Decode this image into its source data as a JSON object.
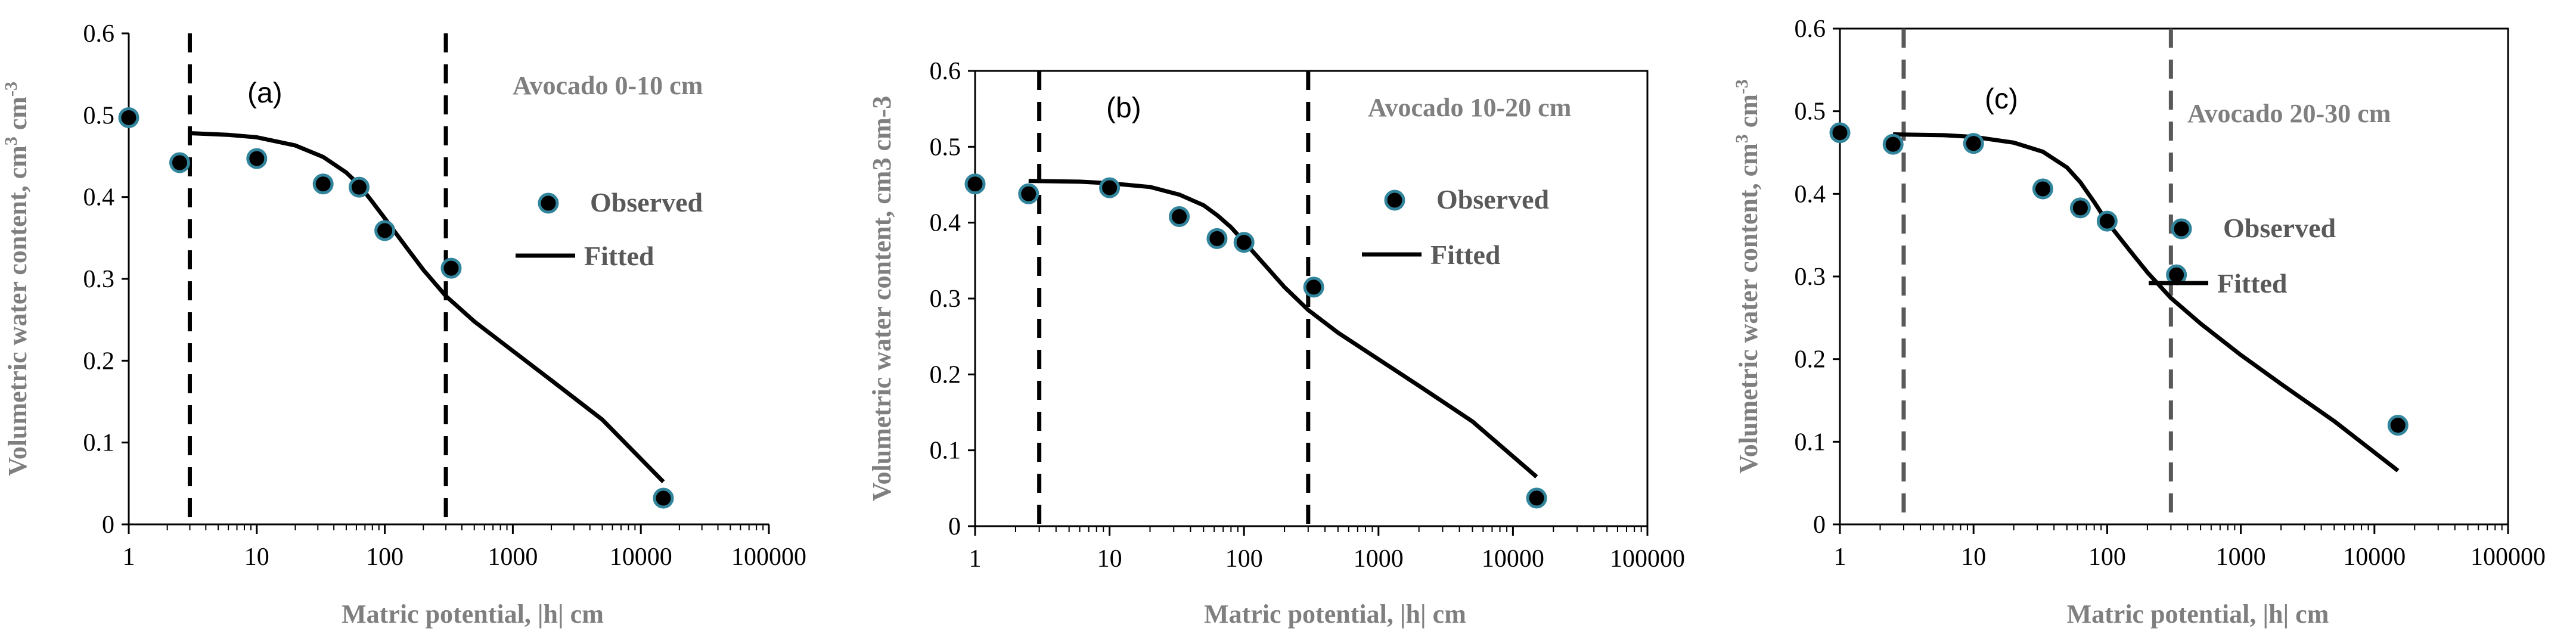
{
  "chart_data": [
    {
      "type": "scatter",
      "panel_label": "(a)",
      "annotation": "Avocado 0-10 cm",
      "xlabel": "Matric potential, |h| cm",
      "ylabel_main": "Volumetric water content, cm",
      "ylabel_sup1": "3",
      "ylabel_mid": " cm",
      "ylabel_sup2": "-3",
      "xscale": "log",
      "xlim": [
        1,
        100000
      ],
      "ylim": [
        0,
        0.6
      ],
      "xticks": [
        "1",
        "10",
        "100",
        "1000",
        "10000",
        "100000"
      ],
      "yticks": [
        "0",
        "0.1",
        "0.2",
        "0.3",
        "0.4",
        "0.5",
        "0.6"
      ],
      "legend": {
        "observed": "Observed",
        "fitted": "Fitted"
      },
      "vlines": [
        3,
        300
      ],
      "vline_color": "#000000",
      "observed": {
        "x": [
          1,
          2.5,
          10,
          33,
          63,
          100,
          330,
          15000
        ],
        "y": [
          0.497,
          0.442,
          0.447,
          0.416,
          0.412,
          0.359,
          0.313,
          0.032
        ]
      },
      "fitted": {
        "x": [
          3,
          6,
          10,
          20,
          33,
          50,
          63,
          80,
          100,
          150,
          200,
          300,
          500,
          1000,
          2000,
          5000,
          15000
        ],
        "y": [
          0.478,
          0.476,
          0.473,
          0.463,
          0.449,
          0.43,
          0.415,
          0.394,
          0.374,
          0.337,
          0.311,
          0.279,
          0.248,
          0.212,
          0.176,
          0.128,
          0.052
        ]
      }
    },
    {
      "type": "scatter",
      "panel_label": "(b)",
      "annotation": "Avocado 10-20 cm",
      "xlabel": "Matric potential, |h| cm",
      "ylabel_main": "Volumetric water content, cm3 cm-3",
      "ylabel_sup1": "",
      "ylabel_mid": "",
      "ylabel_sup2": "",
      "xscale": "log",
      "xlim": [
        1,
        100000
      ],
      "ylim": [
        0,
        0.6
      ],
      "xticks": [
        "1",
        "10",
        "100",
        "1000",
        "10000",
        "100000"
      ],
      "yticks": [
        "0",
        "0.1",
        "0.2",
        "0.3",
        "0.4",
        "0.5",
        "0.6"
      ],
      "legend": {
        "observed": "Observed",
        "fitted": "Fitted"
      },
      "vlines": [
        3,
        300
      ],
      "vline_color": "#000000",
      "observed": {
        "x": [
          1,
          2.5,
          10,
          33,
          63,
          100,
          330,
          15000
        ],
        "y": [
          0.451,
          0.438,
          0.446,
          0.408,
          0.379,
          0.374,
          0.315,
          0.037
        ]
      },
      "fitted": {
        "x": [
          2.5,
          6,
          10,
          20,
          33,
          50,
          63,
          80,
          100,
          150,
          200,
          300,
          500,
          1000,
          2000,
          5000,
          15000
        ],
        "y": [
          0.455,
          0.454,
          0.452,
          0.447,
          0.437,
          0.423,
          0.41,
          0.394,
          0.375,
          0.34,
          0.315,
          0.285,
          0.255,
          0.22,
          0.185,
          0.138,
          0.065
        ]
      }
    },
    {
      "type": "scatter",
      "panel_label": "(c)",
      "annotation": "Avocado 20-30 cm",
      "xlabel": "Matric potential, |h| cm",
      "ylabel_main": "Volumetric water content, cm",
      "ylabel_sup1": "3",
      "ylabel_mid": " cm",
      "ylabel_sup2": "-3",
      "xscale": "log",
      "xlim": [
        1,
        100000
      ],
      "ylim": [
        0,
        0.6
      ],
      "xticks": [
        "1",
        "10",
        "100",
        "1000",
        "10000",
        "100000"
      ],
      "yticks": [
        "0",
        "0.1",
        "0.2",
        "0.3",
        "0.4",
        "0.5",
        "0.6"
      ],
      "legend": {
        "observed": "Observed",
        "fitted": "Fitted"
      },
      "vlines": [
        3,
        300
      ],
      "vline_color": "#595959",
      "observed": {
        "x": [
          1,
          2.5,
          10,
          33,
          63,
          100,
          330,
          15000
        ],
        "y": [
          0.474,
          0.46,
          0.461,
          0.406,
          0.383,
          0.367,
          0.302,
          0.12
        ]
      },
      "fitted": {
        "x": [
          2.5,
          6,
          10,
          20,
          33,
          50,
          63,
          80,
          100,
          150,
          200,
          300,
          500,
          1000,
          2000,
          5000,
          15000
        ],
        "y": [
          0.472,
          0.471,
          0.469,
          0.462,
          0.451,
          0.432,
          0.414,
          0.39,
          0.366,
          0.33,
          0.305,
          0.274,
          0.243,
          0.205,
          0.17,
          0.125,
          0.065
        ]
      }
    }
  ]
}
